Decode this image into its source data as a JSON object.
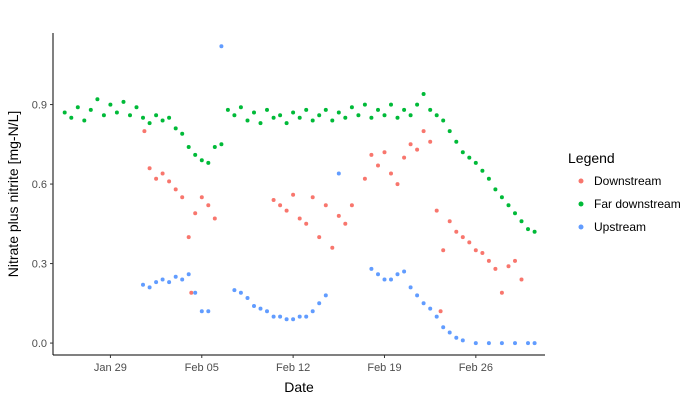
{
  "chart_data": {
    "type": "scatter",
    "xlabel": "Date",
    "ylabel": "Nitrate plus nitrite [mg-N/L]",
    "x_ticks": [
      {
        "label": "Jan 29",
        "day": 29
      },
      {
        "label": "Feb 05",
        "day": 36
      },
      {
        "label": "Feb 12",
        "day": 43
      },
      {
        "label": "Feb 19",
        "day": 50
      },
      {
        "label": "Feb 26",
        "day": 57
      }
    ],
    "xlim_days": [
      24.6,
      62.3
    ],
    "y_ticks": [
      0.0,
      0.3,
      0.6,
      0.9
    ],
    "ylim": [
      -0.045,
      1.17
    ],
    "grid": false,
    "legend": {
      "title": "Legend",
      "position": "right",
      "entries": [
        "Downstream",
        "Far downstream",
        "Upstream"
      ]
    },
    "colors": {
      "Downstream": "#F8766D",
      "Far downstream": "#00BA38",
      "Upstream": "#619CFF"
    },
    "series": [
      {
        "name": "Far downstream",
        "points": [
          [
            25.5,
            0.87
          ],
          [
            26.0,
            0.85
          ],
          [
            26.5,
            0.89
          ],
          [
            27.0,
            0.84
          ],
          [
            27.5,
            0.88
          ],
          [
            28.0,
            0.92
          ],
          [
            28.5,
            0.86
          ],
          [
            29.0,
            0.9
          ],
          [
            29.5,
            0.87
          ],
          [
            30.0,
            0.91
          ],
          [
            30.5,
            0.86
          ],
          [
            31.0,
            0.89
          ],
          [
            31.5,
            0.85
          ],
          [
            32.0,
            0.83
          ],
          [
            32.5,
            0.86
          ],
          [
            33.0,
            0.84
          ],
          [
            33.5,
            0.85
          ],
          [
            34.0,
            0.81
          ],
          [
            34.5,
            0.79
          ],
          [
            35.0,
            0.74
          ],
          [
            35.5,
            0.71
          ],
          [
            36.0,
            0.69
          ],
          [
            36.5,
            0.68
          ],
          [
            37.0,
            0.74
          ],
          [
            37.5,
            0.75
          ],
          [
            38.0,
            0.88
          ],
          [
            38.5,
            0.86
          ],
          [
            39.0,
            0.89
          ],
          [
            39.5,
            0.84
          ],
          [
            40.0,
            0.87
          ],
          [
            40.5,
            0.83
          ],
          [
            41.0,
            0.88
          ],
          [
            41.5,
            0.85
          ],
          [
            42.0,
            0.86
          ],
          [
            42.5,
            0.83
          ],
          [
            43.0,
            0.87
          ],
          [
            43.5,
            0.85
          ],
          [
            44.0,
            0.88
          ],
          [
            44.5,
            0.84
          ],
          [
            45.0,
            0.86
          ],
          [
            45.5,
            0.88
          ],
          [
            46.0,
            0.84
          ],
          [
            46.5,
            0.87
          ],
          [
            47.0,
            0.85
          ],
          [
            47.5,
            0.89
          ],
          [
            48.0,
            0.86
          ],
          [
            48.5,
            0.9
          ],
          [
            49.0,
            0.85
          ],
          [
            49.5,
            0.88
          ],
          [
            50.0,
            0.86
          ],
          [
            50.5,
            0.9
          ],
          [
            51.0,
            0.85
          ],
          [
            51.5,
            0.88
          ],
          [
            52.0,
            0.86
          ],
          [
            52.5,
            0.9
          ],
          [
            53.0,
            0.94
          ],
          [
            53.5,
            0.88
          ],
          [
            54.0,
            0.86
          ],
          [
            54.5,
            0.84
          ],
          [
            55.0,
            0.8
          ],
          [
            55.5,
            0.76
          ],
          [
            56.0,
            0.72
          ],
          [
            56.5,
            0.7
          ],
          [
            57.0,
            0.68
          ],
          [
            57.5,
            0.65
          ],
          [
            58.0,
            0.62
          ],
          [
            58.5,
            0.58
          ],
          [
            59.0,
            0.55
          ],
          [
            59.5,
            0.52
          ],
          [
            60.0,
            0.49
          ],
          [
            60.5,
            0.46
          ],
          [
            61.0,
            0.43
          ],
          [
            61.5,
            0.42
          ]
        ]
      },
      {
        "name": "Downstream",
        "points": [
          [
            31.6,
            0.8
          ],
          [
            32.0,
            0.66
          ],
          [
            32.5,
            0.62
          ],
          [
            33.0,
            0.64
          ],
          [
            33.5,
            0.61
          ],
          [
            34.0,
            0.58
          ],
          [
            34.5,
            0.55
          ],
          [
            35.0,
            0.4
          ],
          [
            35.2,
            0.19
          ],
          [
            35.5,
            0.49
          ],
          [
            36.0,
            0.55
          ],
          [
            36.5,
            0.52
          ],
          [
            37.0,
            0.47
          ],
          [
            41.5,
            0.54
          ],
          [
            42.0,
            0.52
          ],
          [
            42.5,
            0.5
          ],
          [
            43.0,
            0.56
          ],
          [
            43.5,
            0.47
          ],
          [
            44.0,
            0.45
          ],
          [
            44.5,
            0.55
          ],
          [
            45.0,
            0.4
          ],
          [
            45.5,
            0.52
          ],
          [
            46.0,
            0.36
          ],
          [
            46.5,
            0.48
          ],
          [
            47.0,
            0.45
          ],
          [
            47.5,
            0.52
          ],
          [
            48.5,
            0.62
          ],
          [
            49.0,
            0.71
          ],
          [
            49.5,
            0.67
          ],
          [
            50.0,
            0.72
          ],
          [
            50.5,
            0.64
          ],
          [
            51.0,
            0.6
          ],
          [
            51.5,
            0.7
          ],
          [
            52.0,
            0.75
          ],
          [
            52.5,
            0.73
          ],
          [
            53.0,
            0.8
          ],
          [
            53.5,
            0.76
          ],
          [
            54.0,
            0.5
          ],
          [
            54.3,
            0.12
          ],
          [
            54.5,
            0.35
          ],
          [
            55.0,
            0.46
          ],
          [
            55.5,
            0.42
          ],
          [
            56.0,
            0.4
          ],
          [
            56.5,
            0.38
          ],
          [
            57.0,
            0.35
          ],
          [
            57.5,
            0.34
          ],
          [
            58.0,
            0.31
          ],
          [
            58.5,
            0.28
          ],
          [
            59.0,
            0.19
          ],
          [
            59.5,
            0.29
          ],
          [
            60.0,
            0.31
          ],
          [
            60.5,
            0.24
          ]
        ]
      },
      {
        "name": "Upstream",
        "points": [
          [
            31.5,
            0.22
          ],
          [
            32.0,
            0.21
          ],
          [
            32.5,
            0.23
          ],
          [
            33.0,
            0.24
          ],
          [
            33.5,
            0.23
          ],
          [
            34.0,
            0.25
          ],
          [
            34.5,
            0.24
          ],
          [
            35.0,
            0.26
          ],
          [
            35.5,
            0.19
          ],
          [
            36.0,
            0.12
          ],
          [
            36.5,
            0.12
          ],
          [
            37.5,
            1.12
          ],
          [
            38.5,
            0.2
          ],
          [
            39.0,
            0.19
          ],
          [
            39.5,
            0.17
          ],
          [
            40.0,
            0.14
          ],
          [
            40.5,
            0.13
          ],
          [
            41.0,
            0.12
          ],
          [
            41.5,
            0.1
          ],
          [
            42.0,
            0.1
          ],
          [
            42.5,
            0.09
          ],
          [
            43.0,
            0.09
          ],
          [
            43.5,
            0.1
          ],
          [
            44.0,
            0.1
          ],
          [
            44.5,
            0.12
          ],
          [
            45.0,
            0.15
          ],
          [
            45.5,
            0.18
          ],
          [
            46.5,
            0.64
          ],
          [
            49.0,
            0.28
          ],
          [
            49.5,
            0.26
          ],
          [
            50.0,
            0.24
          ],
          [
            50.5,
            0.24
          ],
          [
            51.0,
            0.26
          ],
          [
            51.5,
            0.27
          ],
          [
            52.0,
            0.21
          ],
          [
            52.5,
            0.18
          ],
          [
            53.0,
            0.15
          ],
          [
            53.5,
            0.13
          ],
          [
            54.0,
            0.1
          ],
          [
            54.5,
            0.06
          ],
          [
            55.0,
            0.04
          ],
          [
            55.5,
            0.02
          ],
          [
            56.0,
            0.01
          ],
          [
            57.0,
            0.0
          ],
          [
            58.0,
            0.0
          ],
          [
            59.0,
            0.0
          ],
          [
            60.0,
            0.0
          ],
          [
            61.0,
            0.0
          ],
          [
            61.5,
            0.0
          ]
        ]
      }
    ]
  }
}
